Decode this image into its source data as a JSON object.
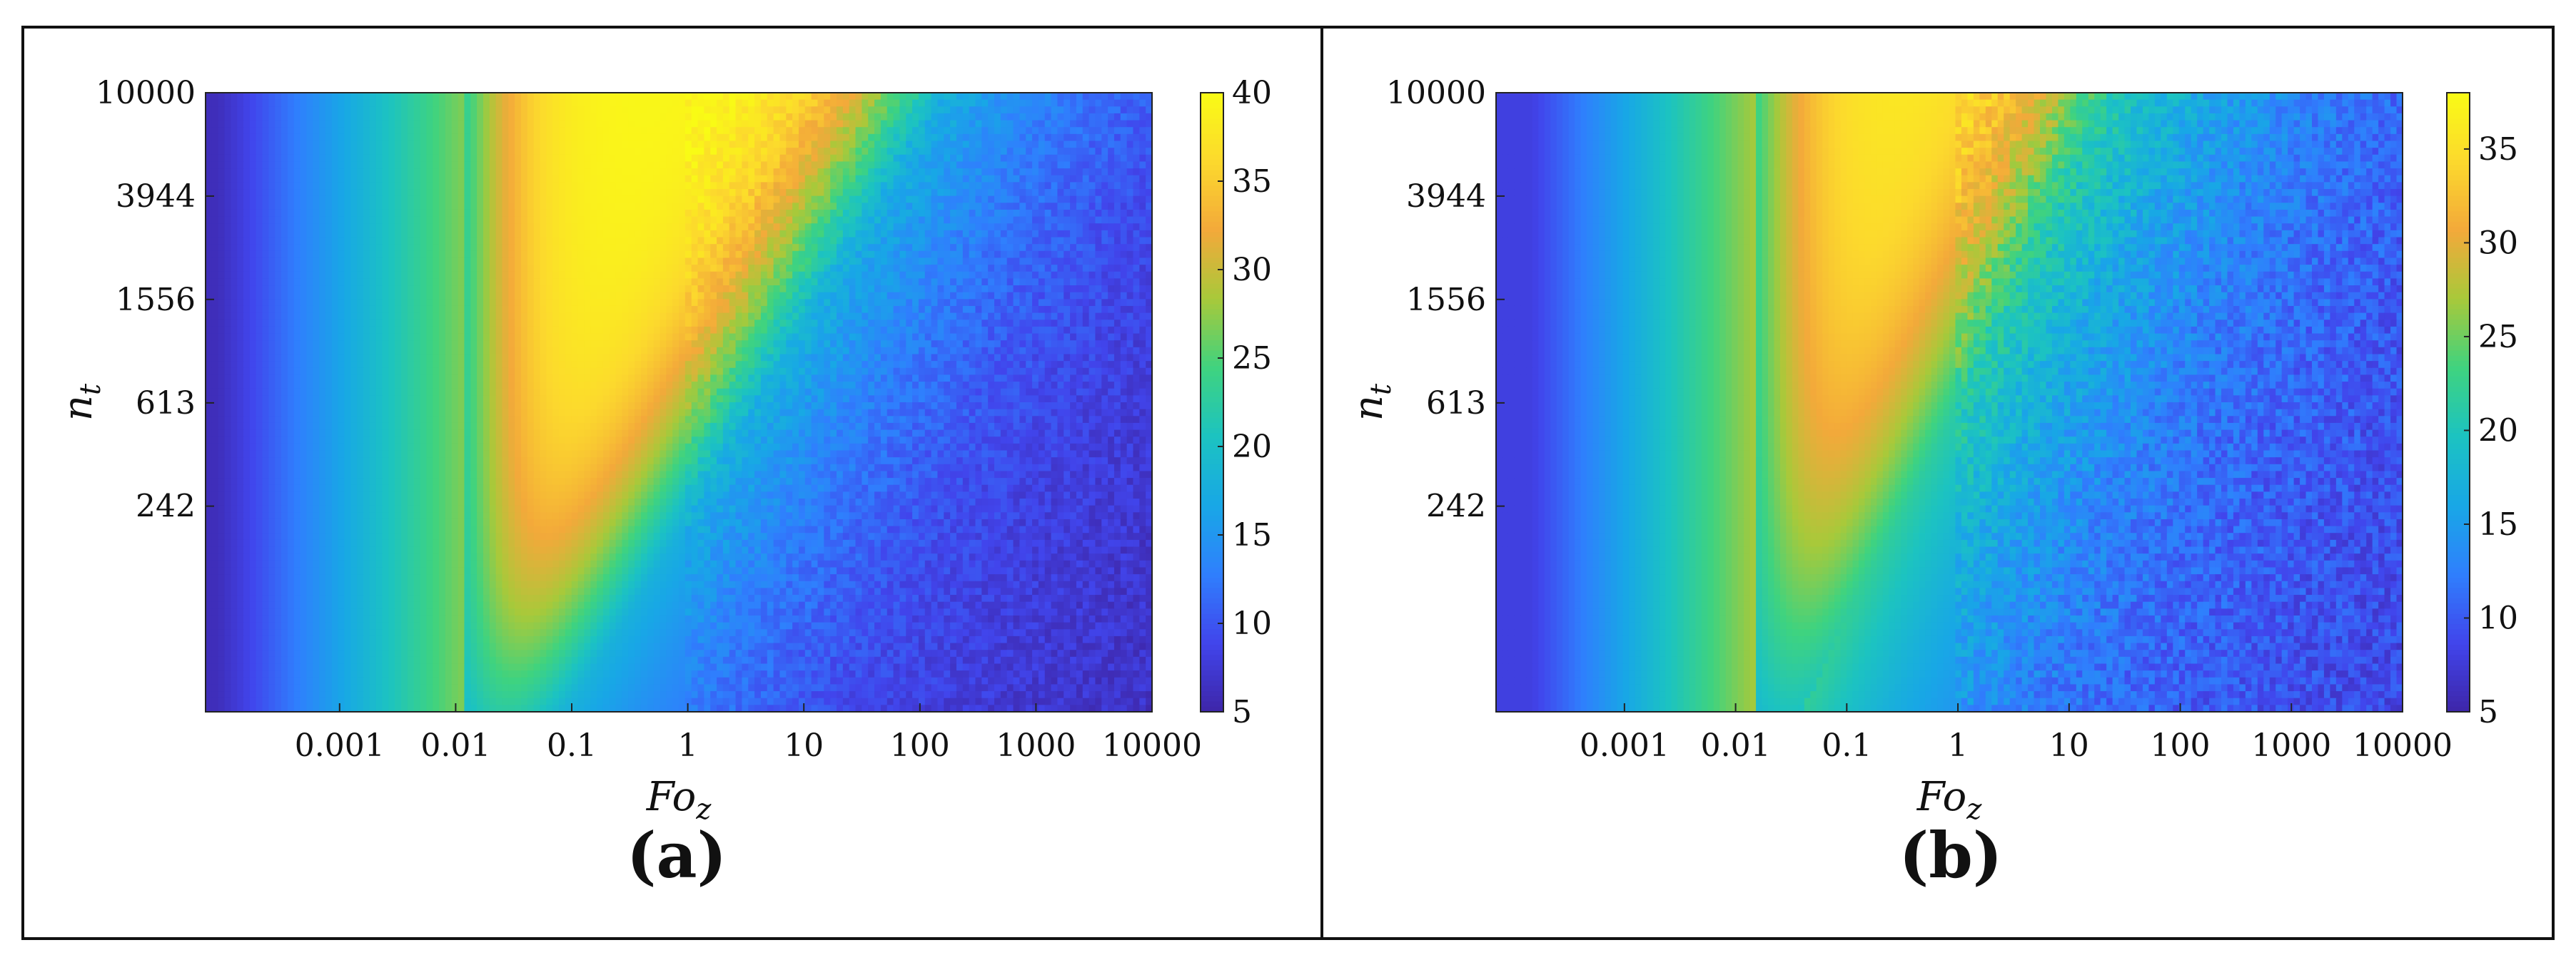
{
  "colors": {
    "background": "#ffffff",
    "frame": "#111111",
    "colormap": [
      "#3e26a8",
      "#4145ec",
      "#2f7ffd",
      "#18a7e6",
      "#1cc3c1",
      "#3fd37f",
      "#a8c93a",
      "#f3a93a",
      "#fcd92d",
      "#f9fb15"
    ]
  },
  "chart_data": [
    {
      "type": "heatmap",
      "panel_label": "(a)",
      "xlabel": "Fo_z",
      "ylabel": "n_t",
      "xscale": "log",
      "yscale": "log",
      "xlim": [
        7e-05,
        10000
      ],
      "ylim": [
        38,
        10000
      ],
      "xticks": [
        0.001,
        0.01,
        0.1,
        1,
        10,
        100,
        1000,
        10000
      ],
      "xtick_labels": [
        "0.001",
        "0.01",
        "0.1",
        "1",
        "10",
        "100",
        "1000",
        "10000"
      ],
      "yticks": [
        242,
        613,
        1556,
        3944,
        10000
      ],
      "ytick_labels": [
        "242",
        "613",
        "1556",
        "3944",
        "10000"
      ],
      "colorbar": {
        "min": 5,
        "max": 40,
        "ticks": [
          5,
          10,
          15,
          20,
          25,
          30,
          35,
          40
        ],
        "tick_labels": [
          "5",
          "10",
          "15",
          "20",
          "25",
          "30",
          "35",
          "40"
        ]
      },
      "model": {
        "rise_width": 2.1,
        "peak": 40,
        "floor": 6,
        "band_shift_per_log_nt": 1.33,
        "band_base_log_fo": -1.3,
        "lower_band_fo": 0.012,
        "noise": 1.5
      }
    },
    {
      "type": "heatmap",
      "panel_label": "(b)",
      "xlabel": "Fo_z",
      "ylabel": "n_t",
      "xscale": "log",
      "yscale": "log",
      "xlim": [
        7e-05,
        10000
      ],
      "ylim": [
        38,
        10000
      ],
      "xticks": [
        0.001,
        0.01,
        0.1,
        1,
        10,
        100,
        1000,
        10000
      ],
      "xtick_labels": [
        "0.001",
        "0.01",
        "0.1",
        "1",
        "10",
        "100",
        "1000",
        "10000"
      ],
      "yticks": [
        242,
        613,
        1556,
        3944,
        10000
      ],
      "ytick_labels": [
        "242",
        "613",
        "1556",
        "3944",
        "10000"
      ],
      "colorbar": {
        "min": 5,
        "max": 38,
        "ticks": [
          5,
          10,
          15,
          20,
          25,
          30,
          35
        ],
        "tick_labels": [
          "5",
          "10",
          "15",
          "20",
          "25",
          "30",
          "35"
        ]
      },
      "model": {
        "rise_width": 2.0,
        "peak": 37,
        "floor": 8,
        "band_shift_per_log_nt": 1.1,
        "band_base_log_fo": -1.4,
        "lower_band_fo": 0.015,
        "noise": 2.2
      }
    }
  ]
}
